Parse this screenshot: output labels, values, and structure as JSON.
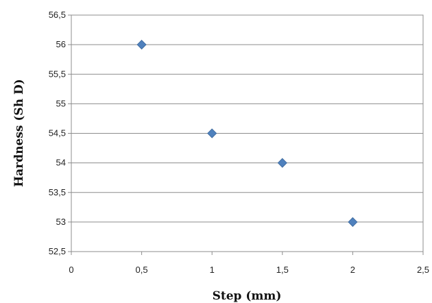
{
  "chart_data": {
    "type": "scatter",
    "title": "",
    "xlabel": "Step (mm)",
    "ylabel": "Hardness (Sh  D)",
    "xlim": [
      0,
      2.5
    ],
    "ylim": [
      52.5,
      56.5
    ],
    "x_ticks": [
      "0",
      "0,5",
      "1",
      "1,5",
      "2",
      "2,5"
    ],
    "y_ticks": [
      "52,5",
      "53",
      "53,5",
      "54",
      "54,5",
      "55",
      "55,5",
      "56",
      "56,5"
    ],
    "grid": "horizontal",
    "legend": "none",
    "marker": "diamond",
    "marker_color": "#4f81bd",
    "series": [
      {
        "points": [
          {
            "x": 0.5,
            "y": 56
          },
          {
            "x": 1.0,
            "y": 54.5
          },
          {
            "x": 1.5,
            "y": 54
          },
          {
            "x": 2.0,
            "y": 53
          }
        ]
      }
    ]
  }
}
